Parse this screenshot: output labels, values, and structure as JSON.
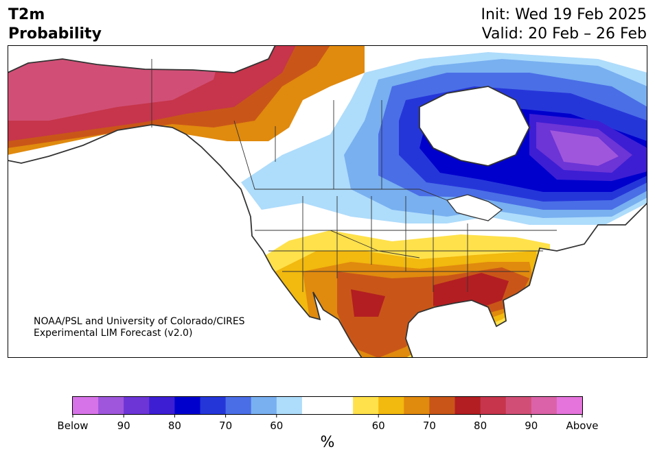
{
  "header": {
    "variable": "T2m",
    "product": "Probability",
    "init": "Init: Wed 19 Feb 2025",
    "valid": "Valid: 20 Feb – 26 Feb"
  },
  "credit": {
    "line1": "NOAA/PSL and University of Colorado/CIRES",
    "line2": "Experimental LIM Forecast (v2.0)"
  },
  "colorbar": {
    "unit": "%",
    "below_colors": [
      "#d773e8",
      "#9f56dc",
      "#6d34d6",
      "#3d1ed3",
      "#0000cd",
      "#2536d9",
      "#4a6ee6",
      "#78b0f0",
      "#aedcfb"
    ],
    "neutral_color": "#ffffff",
    "above_colors": [
      "#ffe14b",
      "#f2b90e",
      "#e08a0e",
      "#c95618",
      "#b31e22",
      "#c6354b",
      "#d14f76",
      "#db62a8",
      "#e574dc"
    ],
    "labels": [
      "Below",
      "90",
      "80",
      "70",
      "60",
      "60",
      "70",
      "80",
      "90",
      "Above"
    ]
  },
  "palette": {
    "below_strong": "#0000cd",
    "above_strong": "#b31e22",
    "coast": "#333333"
  }
}
